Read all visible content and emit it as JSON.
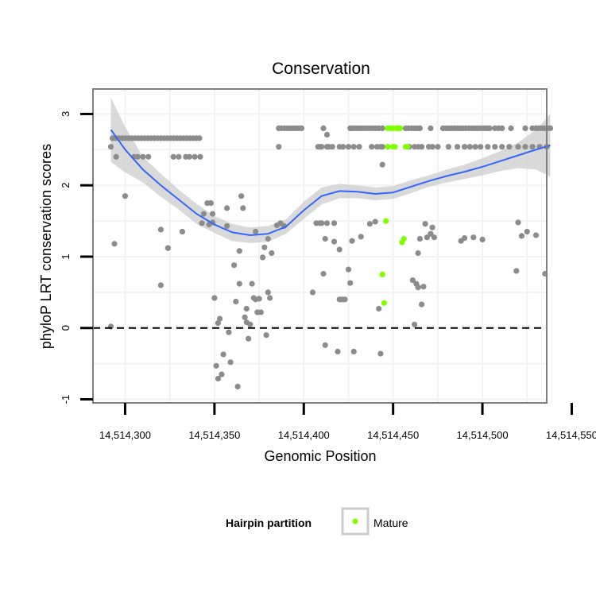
{
  "chart_data": {
    "type": "scatter",
    "title": "Conservation",
    "xlabel": "Genomic Position",
    "ylabel": "phyloP LRT conservation scores",
    "xlim": [
      14514282,
      14514536
    ],
    "ylim": [
      -1.05,
      3.35
    ],
    "x_ticks": [
      14514300,
      14514350,
      14514400,
      14514450,
      14514500,
      14514550
    ],
    "x_tick_labels": [
      "14,514,300",
      "14,514,350",
      "14,514,400",
      "14,514,450",
      "14,514,500",
      "14,514,550"
    ],
    "y_ticks": [
      -1,
      0,
      1,
      2,
      3
    ],
    "y_tick_labels": [
      "-1",
      "0",
      "1",
      "2",
      "3"
    ],
    "grid": true,
    "reference_line": {
      "y": 0,
      "style": "dashed",
      "color": "#000000"
    },
    "legend": {
      "title": "Hairpin partition",
      "placement": "bottom",
      "entries": [
        {
          "label": "Mature",
          "color": "#7fff00"
        }
      ]
    },
    "colors": {
      "other_points": "#8c8c8c",
      "mature_points": "#7fff00",
      "smooth_line": "#3366ff",
      "confidence_band": "#cccccc",
      "panel_border": "#7f7f7f",
      "grid": "#f2f2f2"
    },
    "series": [
      {
        "points": [
          [
            14514292,
            2.54
          ],
          [
            14514292,
            0.02
          ],
          [
            14514293,
            2.66
          ],
          [
            14514294,
            1.18
          ],
          [
            14514295,
            2.4
          ],
          [
            14514300,
            1.85
          ],
          [
            14514305,
            2.4
          ],
          [
            14514307,
            2.4
          ],
          [
            14514310,
            2.4
          ],
          [
            14514313,
            2.4
          ],
          [
            14514320,
            1.38
          ],
          [
            14514320,
            0.6
          ],
          [
            14514324,
            1.12
          ],
          [
            14514324,
            1.12
          ],
          [
            14514327,
            2.4
          ],
          [
            14514330,
            2.4
          ],
          [
            14514332,
            1.35
          ],
          [
            14514334,
            2.4
          ],
          [
            14514336,
            2.4
          ],
          [
            14514339,
            2.4
          ],
          [
            14514342,
            2.4
          ],
          [
            14514343,
            1.47
          ],
          [
            14514344,
            1.6
          ],
          [
            14514346,
            1.75
          ],
          [
            14514347,
            1.45
          ],
          [
            14514348,
            1.75
          ],
          [
            14514349,
            1.6
          ],
          [
            14514349,
            1.48
          ],
          [
            14514350,
            0.42
          ],
          [
            14514351,
            -0.53
          ],
          [
            14514352,
            0.07
          ],
          [
            14514352,
            -0.71
          ],
          [
            14514353,
            0.13
          ],
          [
            14514354,
            -0.65
          ],
          [
            14514355,
            -0.37
          ],
          [
            14514357,
            1.43
          ],
          [
            14514357,
            1.68
          ],
          [
            14514358,
            -0.06
          ],
          [
            14514359,
            -0.48
          ],
          [
            14514361,
            0.88
          ],
          [
            14514362,
            0.37
          ],
          [
            14514363,
            -0.82
          ],
          [
            14514364,
            1.08
          ],
          [
            14514364,
            0.62
          ],
          [
            14514365,
            1.85
          ],
          [
            14514366,
            1.68
          ],
          [
            14514367,
            0.15
          ],
          [
            14514368,
            0.27
          ],
          [
            14514368,
            0.08
          ],
          [
            14514369,
            -0.15
          ],
          [
            14514370,
            0.05
          ],
          [
            14514371,
            0.62
          ],
          [
            14514372,
            0.42
          ],
          [
            14514373,
            1.35
          ],
          [
            14514373,
            0.4
          ],
          [
            14514374,
            0.22
          ],
          [
            14514375,
            0.41
          ],
          [
            14514376,
            0.22
          ],
          [
            14514377,
            0.99
          ],
          [
            14514378,
            1.13
          ],
          [
            14514379,
            -0.1
          ],
          [
            14514380,
            0.5
          ],
          [
            14514380,
            1.25
          ],
          [
            14514381,
            0.42
          ],
          [
            14514382,
            1.05
          ],
          [
            14514385,
            1.44
          ],
          [
            14514387,
            1.47
          ],
          [
            14514389,
            1.43
          ],
          [
            14514386,
            2.54
          ],
          [
            14514408,
            2.54
          ],
          [
            14514409,
            2.54
          ],
          [
            14514410,
            2.54
          ],
          [
            14514413,
            2.54
          ],
          [
            14514414,
            2.54
          ],
          [
            14514416,
            2.54
          ],
          [
            14514420,
            2.54
          ],
          [
            14514422,
            2.54
          ],
          [
            14514425,
            2.54
          ],
          [
            14514428,
            2.54
          ],
          [
            14514431,
            2.54
          ],
          [
            14514438,
            2.54
          ],
          [
            14514441,
            2.54
          ],
          [
            14514443,
            2.54
          ],
          [
            14514444,
            2.54
          ],
          [
            14514459,
            2.54
          ],
          [
            14514462,
            2.54
          ],
          [
            14514464,
            2.54
          ],
          [
            14514466,
            2.54
          ],
          [
            14514470,
            2.54
          ],
          [
            14514472,
            2.54
          ],
          [
            14514475,
            2.54
          ],
          [
            14514481,
            2.54
          ],
          [
            14514486,
            2.54
          ],
          [
            14514490,
            2.54
          ],
          [
            14514493,
            2.54
          ],
          [
            14514496,
            2.54
          ],
          [
            14514499,
            2.54
          ],
          [
            14514503,
            2.54
          ],
          [
            14514507,
            2.54
          ],
          [
            14514511,
            2.54
          ],
          [
            14514515,
            2.54
          ],
          [
            14514520,
            2.54
          ],
          [
            14514524,
            2.54
          ],
          [
            14514528,
            2.54
          ],
          [
            14514532,
            2.54
          ],
          [
            14514536,
            2.54
          ],
          [
            14514411,
            2.8
          ],
          [
            14514413,
            2.71
          ],
          [
            14514427,
            2.8
          ],
          [
            14514444,
            2.8
          ],
          [
            14514471,
            2.8
          ],
          [
            14514478,
            2.8
          ],
          [
            14514503,
            2.8
          ],
          [
            14514504,
            2.8
          ],
          [
            14514507,
            2.8
          ],
          [
            14514509,
            2.8
          ],
          [
            14514511,
            2.8
          ],
          [
            14514516,
            2.8
          ],
          [
            14514524,
            2.8
          ],
          [
            14514528,
            2.8
          ],
          [
            14514530,
            2.8
          ],
          [
            14514409,
            1.47
          ],
          [
            14514410,
            1.47
          ],
          [
            14514412,
            1.25
          ],
          [
            14514413,
            1.47
          ],
          [
            14514417,
            1.21
          ],
          [
            14514417,
            1.47
          ],
          [
            14514420,
            0.4
          ],
          [
            14514420,
            1.1
          ],
          [
            14514421,
            0.4
          ],
          [
            14514422,
            0.4
          ],
          [
            14514423,
            0.4
          ],
          [
            14514425,
            0.82
          ],
          [
            14514426,
            0.63
          ],
          [
            14514427,
            1.22
          ],
          [
            14514428,
            -0.33
          ],
          [
            14514432,
            1.28
          ],
          [
            14514437,
            1.46
          ],
          [
            14514440,
            1.49
          ],
          [
            14514442,
            0.27
          ],
          [
            14514443,
            -0.36
          ],
          [
            14514444,
            2.29
          ],
          [
            14514461,
            0.67
          ],
          [
            14514462,
            0.05
          ],
          [
            14514463,
            0.62
          ],
          [
            14514464,
            1.05
          ],
          [
            14514464,
            0.57
          ],
          [
            14514465,
            1.25
          ],
          [
            14514466,
            0.33
          ],
          [
            14514467,
            0.58
          ],
          [
            14514468,
            1.46
          ],
          [
            14514469,
            1.27
          ],
          [
            14514471,
            1.32
          ],
          [
            14514472,
            1.41
          ],
          [
            14514473,
            1.27
          ],
          [
            14514488,
            1.22
          ],
          [
            14514490,
            1.26
          ],
          [
            14514495,
            1.27
          ],
          [
            14514500,
            1.24
          ],
          [
            14514519,
            0.8
          ],
          [
            14514520,
            1.48
          ],
          [
            14514522,
            1.29
          ],
          [
            14514525,
            1.35
          ],
          [
            14514530,
            1.3
          ],
          [
            14514535,
            0.76
          ],
          [
            14514412,
            -0.24
          ],
          [
            14514419,
            -0.33
          ],
          [
            14514411,
            0.76
          ],
          [
            14514405,
            0.5
          ],
          [
            14514407,
            1.47
          ]
        ]
      },
      {
        "name": "Mature",
        "points": [
          [
            14514446,
            1.5
          ],
          [
            14514444,
            0.75
          ],
          [
            14514445,
            0.35
          ],
          [
            14514455,
            1.2
          ],
          [
            14514456,
            1.25
          ],
          [
            14514447,
            2.54
          ],
          [
            14514450,
            2.54
          ],
          [
            14514451,
            2.54
          ],
          [
            14514457,
            2.54
          ],
          [
            14514458,
            2.54
          ],
          [
            14514447,
            2.8
          ],
          [
            14514449,
            2.8
          ],
          [
            14514450,
            2.8
          ],
          [
            14514452,
            2.8
          ],
          [
            14514453,
            2.8
          ],
          [
            14514454,
            2.8
          ]
        ]
      }
    ],
    "point_bands": [
      {
        "y": 2.66,
        "x_from": 14514293,
        "x_to": 14514342,
        "step": 1.8
      },
      {
        "y": 2.8,
        "x_from": 14514386,
        "x_to": 14514400,
        "step": 1.6
      },
      {
        "y": 2.8,
        "x_from": 14514426,
        "x_to": 14514443,
        "step": 1.6
      },
      {
        "y": 2.8,
        "x_from": 14514457,
        "x_to": 14514465,
        "step": 1.6
      },
      {
        "y": 2.8,
        "x_from": 14514478,
        "x_to": 14514502,
        "step": 1.6
      },
      {
        "y": 2.8,
        "x_from": 14514530,
        "x_to": 14514538,
        "step": 1.6
      }
    ],
    "smooth_curve": {
      "x": [
        14514292,
        14514300,
        14514310,
        14514320,
        14514330,
        14514340,
        14514350,
        14514360,
        14514370,
        14514380,
        14514390,
        14514400,
        14514410,
        14514420,
        14514430,
        14514440,
        14514450,
        14514460,
        14514470,
        14514480,
        14514490,
        14514500,
        14514510,
        14514520,
        14514530,
        14514538
      ],
      "y": [
        2.78,
        2.5,
        2.22,
        2.0,
        1.8,
        1.6,
        1.45,
        1.34,
        1.3,
        1.32,
        1.42,
        1.65,
        1.85,
        1.92,
        1.91,
        1.88,
        1.9,
        1.98,
        2.06,
        2.13,
        2.19,
        2.26,
        2.34,
        2.42,
        2.5,
        2.56
      ],
      "upper": [
        3.23,
        2.82,
        2.4,
        2.16,
        1.94,
        1.74,
        1.57,
        1.46,
        1.41,
        1.43,
        1.52,
        1.77,
        1.97,
        2.02,
        2.0,
        1.97,
        1.99,
        2.07,
        2.14,
        2.22,
        2.29,
        2.38,
        2.48,
        2.6,
        2.78,
        3.0
      ],
      "lower": [
        2.33,
        2.18,
        2.04,
        1.84,
        1.66,
        1.46,
        1.33,
        1.22,
        1.19,
        1.21,
        1.32,
        1.53,
        1.73,
        1.82,
        1.82,
        1.79,
        1.81,
        1.89,
        1.98,
        2.04,
        2.09,
        2.14,
        2.2,
        2.24,
        2.22,
        2.12
      ]
    }
  }
}
